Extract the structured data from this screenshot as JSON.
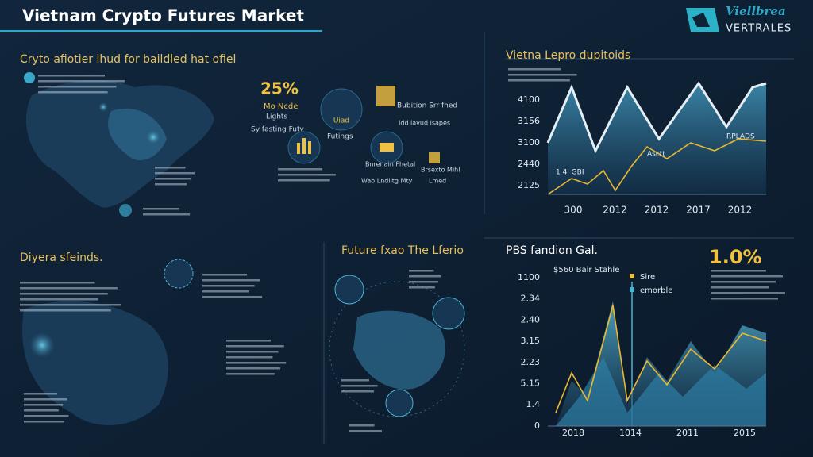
{
  "header": {
    "title": "Vietnam Crypto Futures Market",
    "logo": "Viellbrea",
    "logo_sub": "VERTRALES"
  },
  "panel1": {
    "title": "Cryto afiotier lhud for baildled hat ofiel",
    "stat": "25%",
    "stat_label": "Mo Ncde",
    "stat_sub": "Lights",
    "caption": "Sy fasting Futy",
    "icon_label": "Uiad",
    "icon2_label": "Futings",
    "item1": "Bubition Srr fhed",
    "item1_sub": "Idd lavud lsapes",
    "item2": "Bnrenain Fhetal",
    "item2_sub": "Wao Lndiitg Mty",
    "item3": "Brsexto Mihl",
    "item3_sub": "Lmed"
  },
  "chart1": {
    "title": "Vietna Lepro dupitoids",
    "y_labels": [
      "4100",
      "3156",
      "3100",
      "2440",
      "2125"
    ],
    "x_labels": [
      "300",
      "2012",
      "2012",
      "2017",
      "2012"
    ],
    "annotations": [
      "Asctt",
      "RPLADS",
      "1 4l GBI"
    ]
  },
  "panel3": {
    "title": "Diyera sfeinds."
  },
  "panel4": {
    "title": "Future fxao The Lferio"
  },
  "chart2": {
    "title": "PBS fandion Gal.",
    "stat": "1.0%",
    "subtitle": "$560 Bair Stahle",
    "legend": [
      "Sire",
      "emorble"
    ],
    "y_labels": [
      "1100",
      "2.34",
      "2.40",
      "3.15",
      "2.23",
      "5.15",
      "1.4",
      "0"
    ],
    "x_labels": [
      "2018",
      "1014",
      "2011",
      "2015"
    ]
  }
}
